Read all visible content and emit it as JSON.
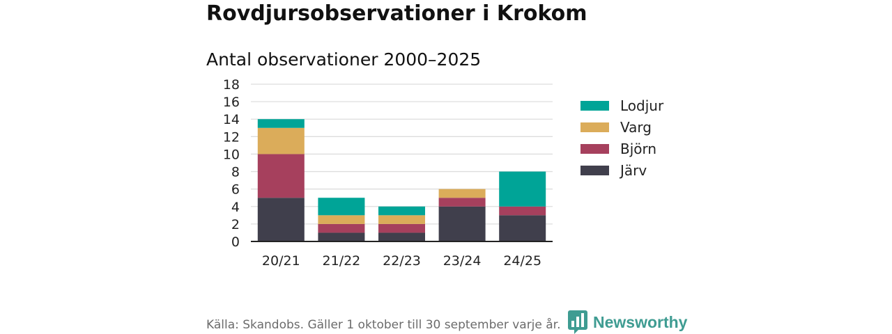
{
  "header": {
    "title": "Rovdjursobservationer i Krokom",
    "subtitle": "Antal observationer 2000–2025"
  },
  "footer": {
    "source": "Källa: Skandobs. Gäller 1 oktober till 30 september varje år.",
    "brand": "Newsworthy"
  },
  "colors": {
    "Järv": "#403f4c",
    "Björn": "#a6405d",
    "Varg": "#dbac5a",
    "Lodjur": "#00a497",
    "gridline": "#dddddd",
    "axis": "#222222",
    "brand": "#3f9c92"
  },
  "chart_data": {
    "type": "bar",
    "stacked": true,
    "title": "Antal observationer 2000–2025",
    "xlabel": "",
    "ylabel": "",
    "ylim": [
      0,
      18
    ],
    "yticks": [
      0,
      2,
      4,
      6,
      8,
      10,
      12,
      14,
      16,
      18
    ],
    "categories": [
      "20/21",
      "21/22",
      "22/23",
      "23/24",
      "24/25"
    ],
    "series": [
      {
        "name": "Järv",
        "values": [
          5,
          1,
          1,
          4,
          3
        ]
      },
      {
        "name": "Björn",
        "values": [
          5,
          1,
          1,
          1,
          1
        ]
      },
      {
        "name": "Varg",
        "values": [
          3,
          1,
          1,
          1,
          0
        ]
      },
      {
        "name": "Lodjur",
        "values": [
          1,
          2,
          1,
          0,
          4
        ]
      }
    ],
    "legend": {
      "position": "right",
      "order": [
        "Lodjur",
        "Varg",
        "Björn",
        "Järv"
      ]
    },
    "grid": true
  }
}
